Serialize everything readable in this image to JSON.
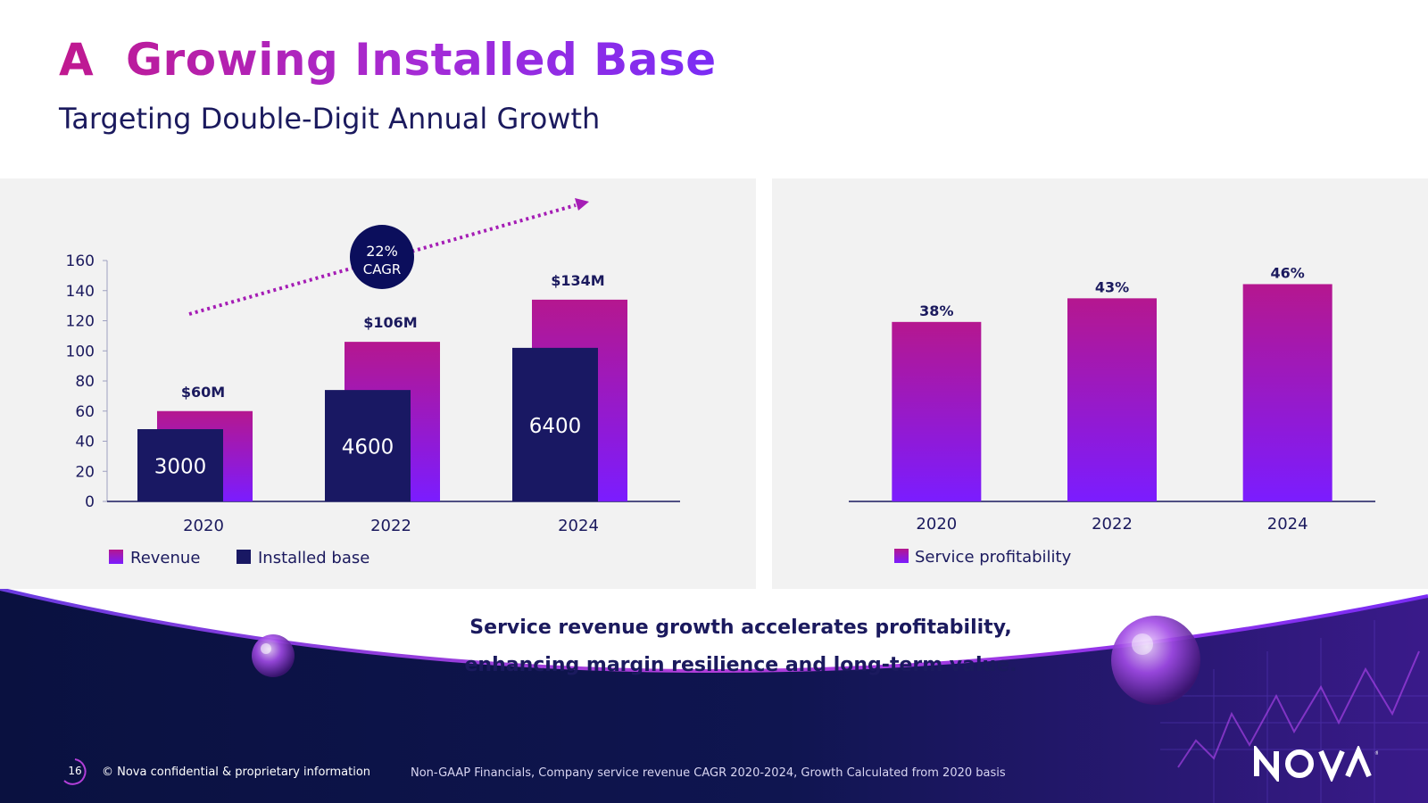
{
  "header": {
    "title": "A  Growing Installed Base",
    "subtitle": "Targeting Double-Digit Annual Growth"
  },
  "colors": {
    "magenta": "#b5178f",
    "violet": "#7b1cff",
    "navy": "#1b1a5e",
    "deep_navy": "#0a1140",
    "panel_bg": "#f2f2f2"
  },
  "chart_data": [
    {
      "type": "bar",
      "categories": [
        "2020",
        "2022",
        "2024"
      ],
      "series": [
        {
          "name": "Revenue",
          "values": [
            60,
            106,
            134
          ],
          "labels": [
            "$60M",
            "$106M",
            "$134M"
          ]
        },
        {
          "name": "Installed base",
          "values": [
            48,
            74,
            102
          ],
          "labels": [
            "3000",
            "4600",
            "6400"
          ]
        }
      ],
      "ylim": [
        0,
        160
      ],
      "yticks": [
        0,
        20,
        40,
        60,
        80,
        100,
        120,
        140,
        160
      ],
      "legend": "bottom-left",
      "annotation": {
        "line1": "22%",
        "line2": "CAGR"
      }
    },
    {
      "type": "bar",
      "categories": [
        "2020",
        "2022",
        "2024"
      ],
      "series": [
        {
          "name": "Service profitability",
          "values": [
            38,
            43,
            46
          ],
          "labels": [
            "38%",
            "43%",
            "46%"
          ]
        }
      ],
      "ylim": [
        0,
        51
      ],
      "legend": "bottom-left"
    }
  ],
  "summary": {
    "line1": "Service revenue growth accelerates profitability,",
    "line2": "enhancing margin resilience and long-term value."
  },
  "footer": {
    "page_number": "16",
    "copyright": "© Nova confidential & proprietary information",
    "note": "Non-GAAP Financials, Company service revenue CAGR 2020-2024, Growth Calculated from 2020 basis",
    "logo_text": "NOVA"
  }
}
